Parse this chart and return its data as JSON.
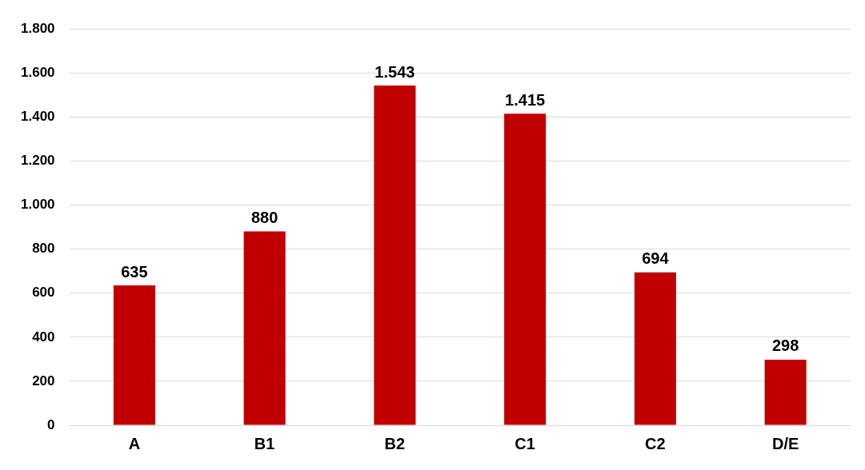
{
  "chart_data": {
    "type": "bar",
    "categories": [
      "A",
      "B1",
      "B2",
      "C1",
      "C2",
      "D/E"
    ],
    "values": [
      635,
      880,
      1543,
      1415,
      694,
      298
    ],
    "value_labels": [
      "635",
      "880",
      "1.543",
      "1.415",
      "694",
      "298"
    ],
    "color": "#c00000",
    "ylim": [
      0,
      1800
    ],
    "yticks": [
      0,
      200,
      400,
      600,
      800,
      {
        "value": 1000,
        "label": "1.000"
      },
      {
        "value": 1200,
        "label": "1.200"
      },
      {
        "value": 1400,
        "label": "1.400"
      },
      {
        "value": 1600,
        "label": "1.600"
      },
      {
        "value": 1800,
        "label": "1.800"
      }
    ],
    "grid": "y",
    "legend": false
  }
}
